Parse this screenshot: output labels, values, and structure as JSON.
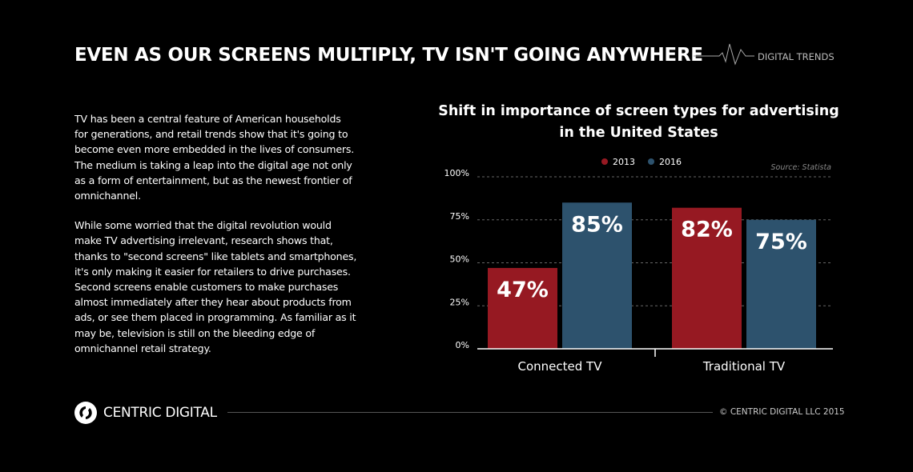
{
  "header": {
    "title": "EVEN AS OUR SCREENS MULTIPLY, TV ISN'T GOING ANYWHERE",
    "section_label": "DIGITAL TRENDS"
  },
  "body": {
    "paragraphs": [
      [
        "TV has been a central feature of American households",
        "for generations, and retail trends show that it's going to",
        "become even more embedded in the lives of consumers.",
        "The medium is taking a leap into the digital age not only",
        "as a form of entertainment, but as the newest frontier of",
        "omnichannel."
      ],
      [
        "While some worried that the digital revolution would",
        "make TV advertising irrelevant, research shows that,",
        "thanks to \"second screens\" like tablets and smartphones,",
        "it's only making it easier for retailers to drive purchases.",
        "Second screens enable customers to make purchases",
        "almost immediately after they hear about products from",
        "ads, or see them placed in programming. As familiar as it",
        "may be, television is still on the bleeding edge of",
        "omnichannel retail strategy."
      ]
    ]
  },
  "footer": {
    "brand": "CENTRIC DIGITAL",
    "copyright": "© CENTRIC DIGITAL LLC 2015",
    "logo_icon": "refresh-circle-icon"
  },
  "chart_data": {
    "type": "bar",
    "title": "Shift in importance of screen types for advertising in the United States",
    "title_lines": [
      "Shift in importance of screen types for advertising",
      "in the United States"
    ],
    "source": "Source: Statista",
    "categories": [
      "Connected TV",
      "Traditional TV"
    ],
    "series": [
      {
        "name": "2013",
        "values": [
          47,
          82
        ],
        "labels": [
          "47%",
          "82%"
        ],
        "color": "#961922"
      },
      {
        "name": "2016",
        "values": [
          85,
          75
        ],
        "labels": [
          "85%",
          "75%"
        ],
        "color": "#2d526d"
      }
    ],
    "yticks": [
      0,
      25,
      50,
      75,
      100
    ],
    "ytick_labels": [
      "0%",
      "25%",
      "50%",
      "75%",
      "100%"
    ],
    "ylim": [
      0,
      100
    ],
    "grid": true,
    "legend": "top-center"
  }
}
